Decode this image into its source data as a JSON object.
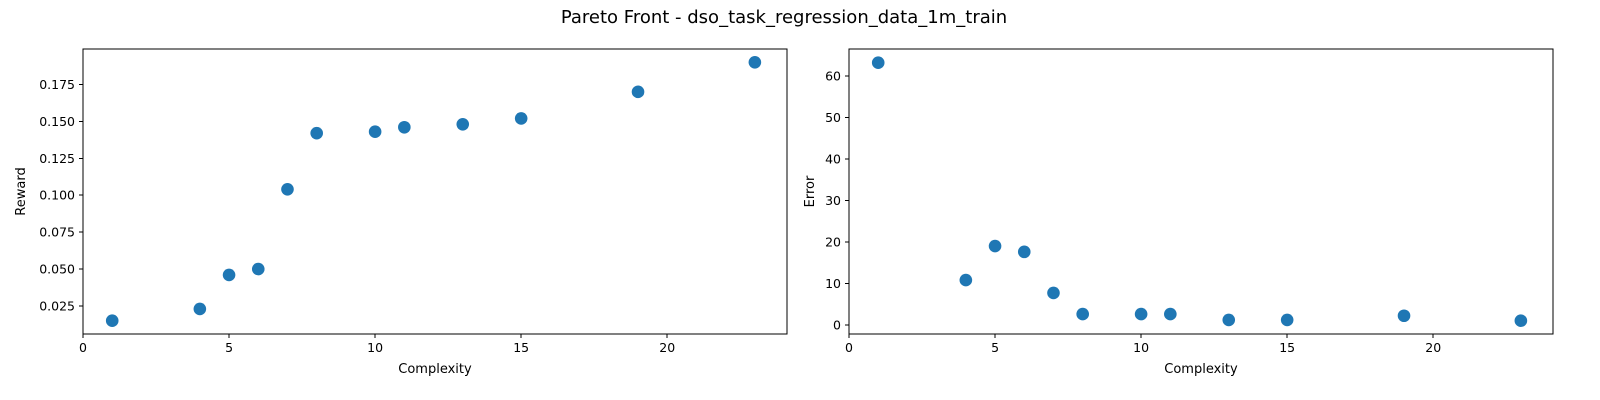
{
  "figure": {
    "title": "Pareto Front - dso_task_regression_data_1m_train"
  },
  "chart_data": [
    {
      "type": "scatter",
      "xlabel": "Complexity",
      "ylabel": "Reward",
      "xlim": [
        0,
        24.1
      ],
      "ylim": [
        0.006,
        0.199
      ],
      "xticks": [
        0,
        5,
        10,
        15,
        20
      ],
      "yticks": [
        0.025,
        0.05,
        0.075,
        0.1,
        0.125,
        0.15,
        0.175
      ],
      "ytick_labels": [
        "0.025",
        "0.050",
        "0.075",
        "0.100",
        "0.125",
        "0.150",
        "0.175"
      ],
      "grid": false,
      "color": "#1f77b4",
      "x": [
        1,
        4,
        5,
        6,
        7,
        8,
        10,
        11,
        13,
        15,
        19,
        23
      ],
      "y": [
        0.015,
        0.023,
        0.046,
        0.05,
        0.104,
        0.142,
        0.143,
        0.146,
        0.148,
        0.152,
        0.17,
        0.19
      ]
    },
    {
      "type": "scatter",
      "xlabel": "Complexity",
      "ylabel": "Error",
      "xlim": [
        0,
        24.1
      ],
      "ylim": [
        -2.2,
        66.5
      ],
      "xticks": [
        0,
        5,
        10,
        15,
        20
      ],
      "yticks": [
        0,
        10,
        20,
        30,
        40,
        50,
        60
      ],
      "ytick_labels": [
        "0",
        "10",
        "20",
        "30",
        "40",
        "50",
        "60"
      ],
      "grid": false,
      "color": "#1f77b4",
      "x": [
        1,
        4,
        5,
        6,
        7,
        8,
        10,
        11,
        13,
        15,
        19,
        23
      ],
      "y": [
        63.2,
        10.8,
        19.0,
        17.6,
        7.7,
        2.6,
        2.6,
        2.6,
        1.2,
        1.2,
        2.2,
        1.0
      ]
    }
  ]
}
